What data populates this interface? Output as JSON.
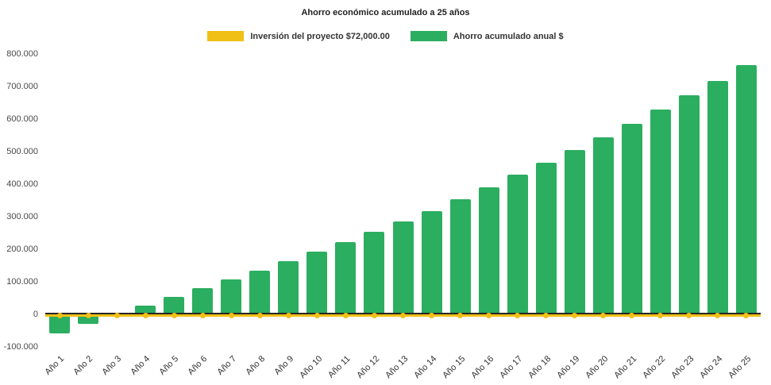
{
  "chart": {
    "title": "Ahorro económico acumulado a 25 años",
    "legend": [
      {
        "label": "Inversión del proyecto $72,000.00",
        "color": "#F0C017"
      },
      {
        "label": "Ahorro acumulado anual $",
        "color": "#2BAE5F"
      }
    ]
  },
  "chart_data": {
    "type": "bar",
    "title": "Ahorro económico acumulado a 25 años",
    "categories": [
      "Año 1",
      "Año 2",
      "Año 3",
      "Año 4",
      "Año 5",
      "Año 6",
      "Año 7",
      "Año 8",
      "Año 9",
      "Año 10",
      "Año 11",
      "Año 12",
      "Año 13",
      "Año 14",
      "Año 15",
      "Año 16",
      "Año 17",
      "Año 18",
      "Año 19",
      "Año 20",
      "Año 21",
      "Año 22",
      "Año 23",
      "Año 24",
      "Año 25"
    ],
    "series": [
      {
        "name": "Ahorro acumulado anual $",
        "type": "bar",
        "color": "#2BAE5F",
        "values": [
          -58000,
          -30000,
          -2000,
          27000,
          53000,
          80000,
          107000,
          135000,
          163000,
          192000,
          222000,
          253000,
          285000,
          318000,
          354000,
          391000,
          429000,
          467000,
          506000,
          544000,
          586000,
          629000,
          672000,
          718000,
          765000
        ]
      },
      {
        "name": "Inversión del proyecto $72,000.00",
        "type": "line",
        "color": "#F0C017",
        "values": [
          0,
          0,
          0,
          0,
          0,
          0,
          0,
          0,
          0,
          0,
          0,
          0,
          0,
          0,
          0,
          0,
          0,
          0,
          0,
          0,
          0,
          0,
          0,
          0,
          0
        ]
      }
    ],
    "ylim": [
      -100000,
      800000
    ],
    "y_ticks": [
      {
        "label": "800.000",
        "value": 800000
      },
      {
        "label": "700.000",
        "value": 700000
      },
      {
        "label": "600.000",
        "value": 600000
      },
      {
        "label": "500.000",
        "value": 500000
      },
      {
        "label": "400.000",
        "value": 400000
      },
      {
        "label": "300.000",
        "value": 300000
      },
      {
        "label": "200.000",
        "value": 200000
      },
      {
        "label": "100.000",
        "value": 100000
      },
      {
        "label": "0",
        "value": 0
      },
      {
        "label": "-100.000",
        "value": -100000
      }
    ],
    "grid": false,
    "legend_position": "top"
  }
}
